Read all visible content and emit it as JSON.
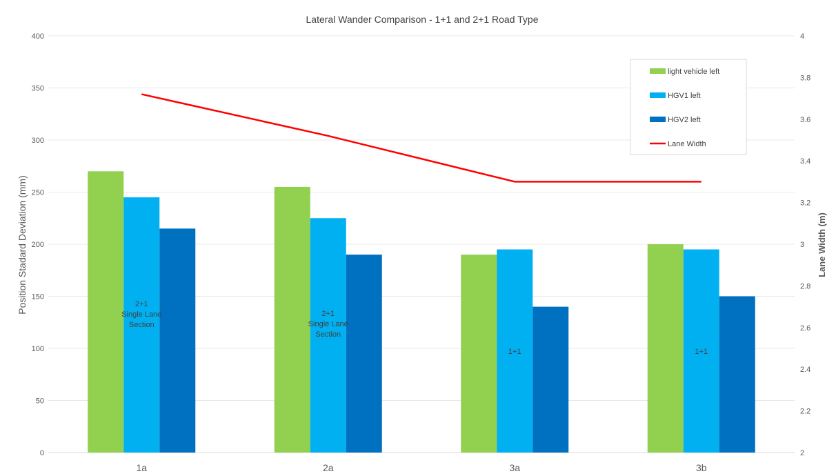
{
  "chart_data": {
    "type": "bar",
    "title": "Lateral Wander Comparison - 1+1 and 2+1 Road Type",
    "categories": [
      "1a",
      "2a",
      "3a",
      "3b"
    ],
    "ylabel": "Position Stadard Deviation (mm)",
    "ylim": [
      0,
      400
    ],
    "yticks": [
      "0",
      "50",
      "100",
      "150",
      "200",
      "250",
      "300",
      "350",
      "400"
    ],
    "y2label": "Lane Width (m)",
    "y2lim": [
      2,
      4
    ],
    "y2ticks": [
      "2",
      "2.2",
      "2.4",
      "2.6",
      "2.8",
      "3",
      "3.2",
      "3.4",
      "3.6",
      "3.8",
      "4"
    ],
    "grid": true,
    "legend_position": "top-right",
    "series": [
      {
        "name": "light vehicle left",
        "type": "bar",
        "color": "#92d050",
        "values": [
          270,
          255,
          190,
          200
        ]
      },
      {
        "name": "HGV1 left",
        "type": "bar",
        "color": "#00b0f0",
        "values": [
          245,
          225,
          195,
          195
        ]
      },
      {
        "name": "HGV2 left",
        "type": "bar",
        "color": "#0070c0",
        "values": [
          215,
          190,
          140,
          150
        ]
      },
      {
        "name": "Lane Width",
        "type": "line",
        "axis": "secondary",
        "color": "#ff0000",
        "values": [
          3.72,
          3.52,
          3.3,
          3.3
        ]
      }
    ],
    "annotations": [
      {
        "category": "1a",
        "lines": [
          "2+1",
          "Single Lane",
          "Section"
        ]
      },
      {
        "category": "2a",
        "lines": [
          "2+1",
          "Single Lane",
          "Section"
        ]
      },
      {
        "category": "3a",
        "lines": [
          "1+1"
        ]
      },
      {
        "category": "3b",
        "lines": [
          "1+1"
        ]
      }
    ]
  }
}
